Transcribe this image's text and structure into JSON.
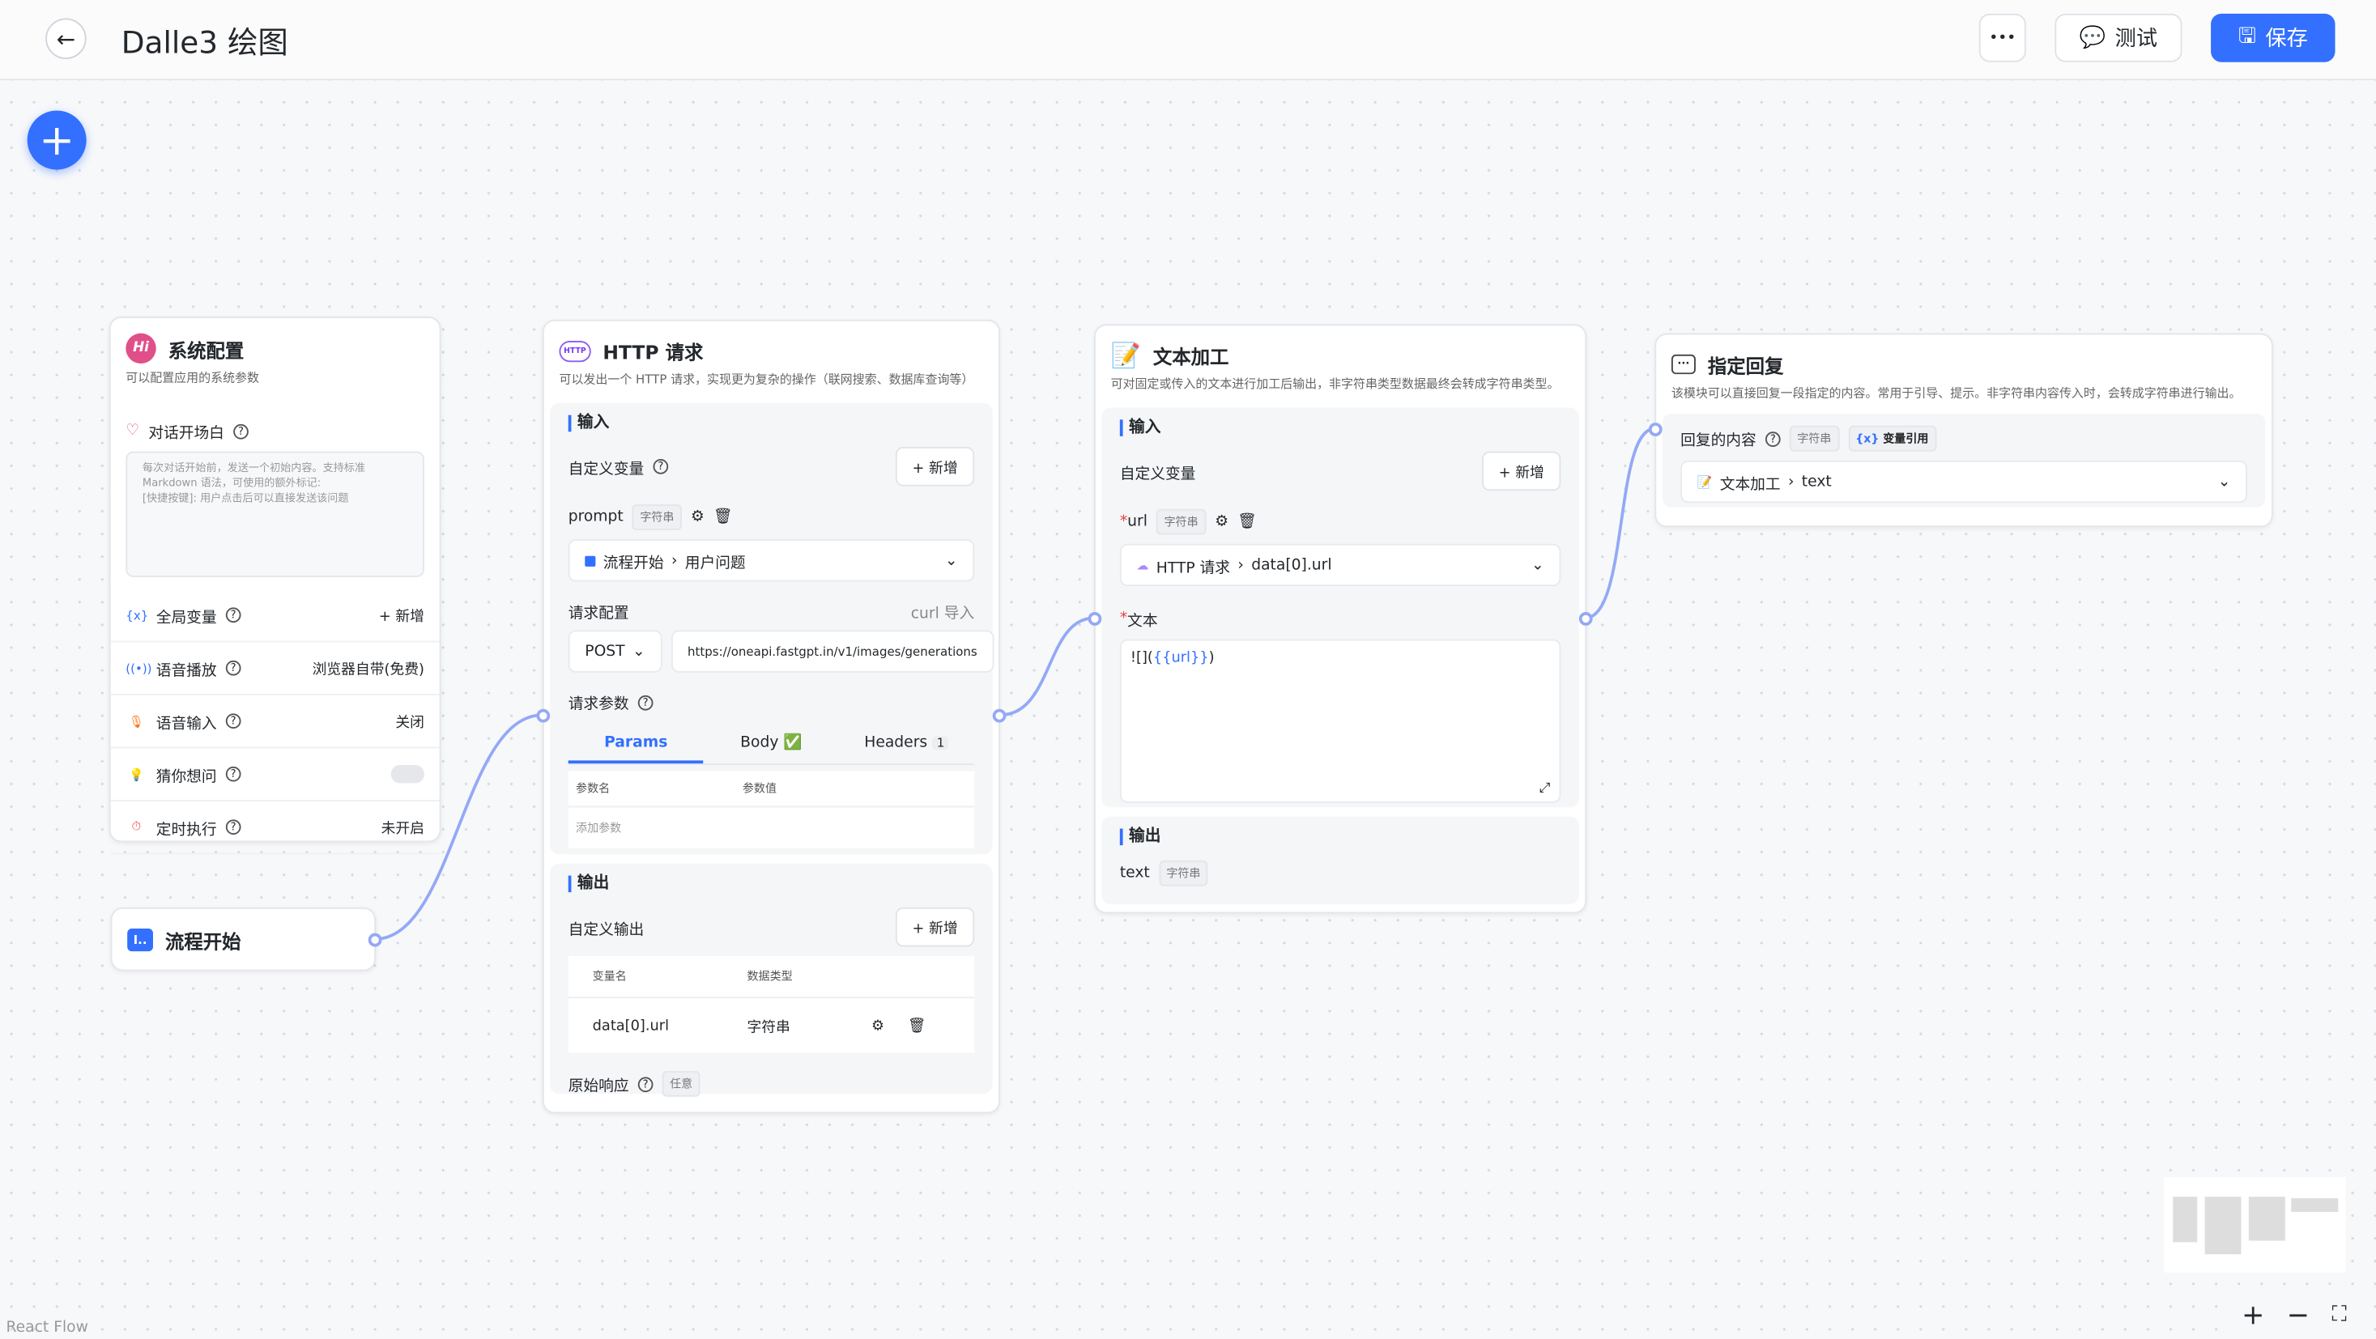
{
  "header": {
    "title": "Dalle3 绘图",
    "more": "•••",
    "test": "测试",
    "save": "保存"
  },
  "canvas": {
    "watermark": "React Flow"
  },
  "system": {
    "title": "系统配置",
    "desc": "可以配置应用的系统参数",
    "opening": "对话开场白",
    "opening_placeholder": "每次对话开始前，发送一个初始内容。支持标准 Markdown 语法，可使用的额外标记:\n[快捷按键]: 用户点击后可以直接发送该问题",
    "rows": [
      {
        "label": "全局变量",
        "value": "+ 新增",
        "icon": "variable-icon"
      },
      {
        "label": "语音播放",
        "value": "浏览器自带(免费)",
        "icon": "speaker-icon"
      },
      {
        "label": "语音输入",
        "value": "关闭",
        "icon": "microphone-icon"
      },
      {
        "label": "猜你想问",
        "value": "",
        "icon": "bulb-icon",
        "toggle": false
      },
      {
        "label": "定时执行",
        "value": "未开启",
        "icon": "clock-icon"
      }
    ]
  },
  "start": {
    "title": "流程开始"
  },
  "http": {
    "title": "HTTP 请求",
    "desc": "可以发出一个 HTTP 请求，实现更为复杂的操作（联网搜索、数据库查询等）",
    "input": "输入",
    "custom_var": "自定义变量",
    "add": "+ 新增",
    "var_name": "prompt",
    "var_type": "字符串",
    "var_ref_node": "流程开始",
    "var_ref_field": "用户问题",
    "req_config": "请求配置",
    "curl": "curl 导入",
    "method": "POST",
    "url": "https://oneapi.fastgpt.in/v1/images/generations",
    "params_label": "请求参数",
    "tabs": [
      {
        "label": "Params",
        "active": true
      },
      {
        "label": "Body ✅"
      },
      {
        "label": "Headers",
        "badge": "1"
      }
    ],
    "param_headers": [
      "参数名",
      "参数值"
    ],
    "add_param": "添加参数",
    "output": "输出",
    "custom_output": "自定义输出",
    "out_headers": [
      "变量名",
      "数据类型"
    ],
    "out_rows": [
      {
        "name": "data[0].url",
        "type": "字符串"
      }
    ],
    "raw": "原始响应",
    "raw_type": "任意"
  },
  "text": {
    "title": "文本加工",
    "desc": "可对固定或传入的文本进行加工后输出，非字符串类型数据最终会转成字符串类型。",
    "input": "输入",
    "custom_var": "自定义变量",
    "add": "+ 新增",
    "var_name": "url",
    "var_type": "字符串",
    "ref_node": "HTTP 请求",
    "ref_field": "data[0].url",
    "text_label": "文本",
    "text_pre": "![](",
    "text_var": "{{url}}",
    "text_post": ")",
    "output": "输出",
    "out_name": "text",
    "out_type": "字符串"
  },
  "reply": {
    "title": "指定回复",
    "desc": "该模块可以直接回复一段指定的内容。常用于引导、提示。非字符串内容传入时，会转成字符串进行输出。",
    "content_label": "回复的内容",
    "type_tag": "字符串",
    "ref_tag": "变量引用",
    "ref_node": "文本加工",
    "ref_field": "text"
  },
  "colors": {
    "accent": "#3370ff",
    "edge": "#94a9f5"
  }
}
